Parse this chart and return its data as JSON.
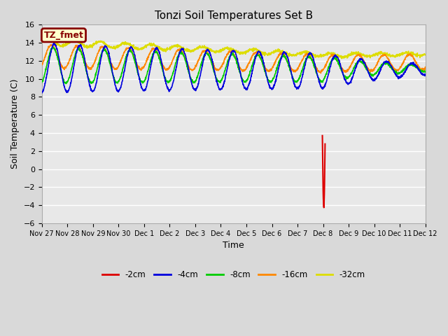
{
  "title": "Tonzi Soil Temperatures Set B",
  "xlabel": "Time",
  "ylabel": "Soil Temperature (C)",
  "ylim": [
    -6,
    16
  ],
  "yticks": [
    -6,
    -4,
    -2,
    0,
    2,
    4,
    6,
    8,
    10,
    12,
    14,
    16
  ],
  "background_color": "#d9d9d9",
  "plot_bg_color": "#e8e8e8",
  "grid_color": "#ffffff",
  "colors": {
    "-2cm": "#dd0000",
    "-4cm": "#0000dd",
    "-8cm": "#00cc00",
    "-16cm": "#ff8800",
    "-32cm": "#dddd00"
  },
  "legend_labels": [
    "-2cm",
    "-4cm",
    "-8cm",
    "-16cm",
    "-32cm"
  ],
  "annotation_label": "TZ_fmet",
  "annotation_color": "#880000",
  "annotation_bg": "#ffffcc",
  "num_points": 2000,
  "tick_labels": [
    "Nov 27",
    "Nov 28",
    "Nov 29",
    "Nov 30",
    "Dec 1",
    "Dec 2",
    "Dec 3",
    "Dec 4",
    "Dec 5",
    "Dec 6",
    "Dec 7",
    "Dec 8",
    "Dec 9",
    "Dec 10",
    "Dec 11",
    "Dec 12"
  ]
}
